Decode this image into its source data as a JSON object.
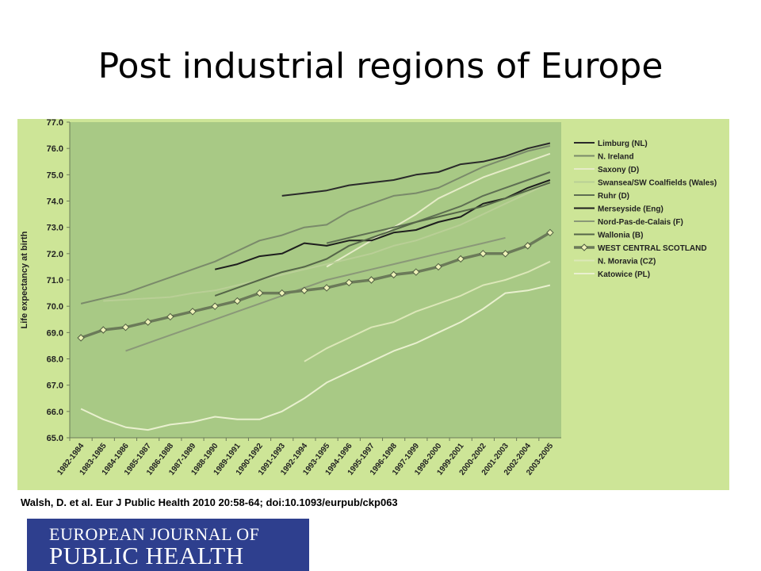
{
  "slide": {
    "title": "Post industrial regions of Europe",
    "citation": "Walsh, D. et al. Eur J Public Health 2010 20:58-64; doi:10.1093/eurpub/ckp063"
  },
  "logo": {
    "line1": "EUROPEAN JOURNAL OF",
    "line2": "PUBLIC HEALTH"
  },
  "colors": {
    "panel_background": "#cde597",
    "plot_background": "#a8c985",
    "logo_background": "#2e3f8e"
  },
  "chart_data": {
    "type": "line",
    "ylabel": "Life expectancy at birth",
    "xlabel": "",
    "ylim": [
      65.0,
      77.0
    ],
    "yticks": [
      "65.0",
      "66.0",
      "67.0",
      "68.0",
      "69.0",
      "70.0",
      "71.0",
      "72.0",
      "73.0",
      "74.0",
      "75.0",
      "76.0",
      "77.0"
    ],
    "categories": [
      "1982-1984",
      "1983-1985",
      "1984-1986",
      "1985-1987",
      "1986-1988",
      "1987-1989",
      "1988-1990",
      "1989-1991",
      "1990-1992",
      "1991-1993",
      "1992-1994",
      "1993-1995",
      "1994-1996",
      "1995-1997",
      "1996-1998",
      "1997-1999",
      "1998-2000",
      "1999-2001",
      "2000-2002",
      "2001-2003",
      "2002-2004",
      "2003-2005"
    ],
    "legend_position": "right",
    "series": [
      {
        "name": "Limburg (NL)",
        "color": "#2a2a2a",
        "width": 2,
        "values": [
          null,
          null,
          null,
          null,
          null,
          null,
          null,
          null,
          null,
          74.2,
          74.3,
          74.4,
          74.6,
          74.7,
          74.8,
          75.0,
          75.1,
          75.4,
          75.5,
          75.7,
          76.0,
          76.2
        ]
      },
      {
        "name": "N. Ireland",
        "color": "#7a8a6a",
        "width": 2,
        "values": [
          70.1,
          70.3,
          70.5,
          70.8,
          71.1,
          71.4,
          71.7,
          72.1,
          72.5,
          72.7,
          73.0,
          73.1,
          73.6,
          73.9,
          74.2,
          74.3,
          74.5,
          74.9,
          75.3,
          75.6,
          75.9,
          76.1
        ]
      },
      {
        "name": "Saxony (D)",
        "color": "#e6ecc8",
        "width": 2,
        "values": [
          null,
          null,
          null,
          null,
          null,
          null,
          null,
          null,
          null,
          null,
          null,
          71.5,
          72.0,
          72.5,
          73.0,
          73.5,
          74.1,
          74.5,
          74.9,
          75.2,
          75.5,
          75.8
        ]
      },
      {
        "name": "Swansea/SW Coalfields (Wales)",
        "color": "#b9cf96",
        "width": 2,
        "values": [
          null,
          70.2,
          70.25,
          70.3,
          70.35,
          70.5,
          70.6,
          70.8,
          71.0,
          71.2,
          71.4,
          71.6,
          71.8,
          72.0,
          72.3,
          72.5,
          72.8,
          73.1,
          73.5,
          73.9,
          74.3,
          74.7
        ]
      },
      {
        "name": "Ruhr (D)",
        "color": "#5e6e52",
        "width": 2,
        "values": [
          null,
          null,
          null,
          null,
          null,
          null,
          null,
          null,
          null,
          null,
          null,
          72.4,
          72.6,
          72.8,
          73.0,
          73.2,
          73.5,
          73.8,
          74.2,
          74.5,
          74.8,
          75.1
        ]
      },
      {
        "name": "Merseyside (Eng)",
        "color": "#1e1e1e",
        "width": 2,
        "values": [
          null,
          null,
          null,
          null,
          null,
          null,
          71.4,
          71.6,
          71.9,
          72.0,
          72.4,
          72.3,
          72.5,
          72.5,
          72.8,
          72.9,
          73.2,
          73.4,
          73.9,
          74.1,
          74.5,
          74.8
        ]
      },
      {
        "name": "Nord-Pas-de-Calais (F)",
        "color": "#8a9878",
        "width": 2,
        "values": [
          null,
          null,
          68.3,
          68.6,
          68.9,
          69.2,
          69.5,
          69.8,
          70.1,
          70.4,
          70.7,
          71.0,
          71.2,
          71.4,
          71.6,
          71.8,
          72.0,
          72.2,
          72.4,
          72.6,
          null,
          null
        ]
      },
      {
        "name": "Wallonia (B)",
        "color": "#556548",
        "width": 2,
        "values": [
          null,
          null,
          null,
          null,
          null,
          null,
          70.4,
          70.7,
          71.0,
          71.3,
          71.5,
          71.8,
          72.3,
          72.6,
          72.9,
          73.2,
          73.4,
          73.6,
          73.8,
          74.1,
          74.4,
          74.7
        ]
      },
      {
        "name": "WEST CENTRAL SCOTLAND",
        "color": "#6b7a59",
        "width": 3.5,
        "marker": "diamond",
        "values": [
          68.8,
          69.1,
          69.2,
          69.4,
          69.6,
          69.8,
          70.0,
          70.2,
          70.5,
          70.5,
          70.6,
          70.7,
          70.9,
          71.0,
          71.2,
          71.3,
          71.5,
          71.8,
          72.0,
          72.0,
          72.3,
          72.8
        ]
      },
      {
        "name": "N. Moravia (CZ)",
        "color": "#dce7b8",
        "width": 2,
        "values": [
          null,
          null,
          null,
          null,
          null,
          null,
          null,
          null,
          null,
          null,
          67.9,
          68.4,
          68.8,
          69.2,
          69.4,
          69.8,
          70.1,
          70.4,
          70.8,
          71.0,
          71.3,
          71.7
        ]
      },
      {
        "name": "Katowice (PL)",
        "color": "#e9f0cf",
        "width": 2,
        "values": [
          66.1,
          65.7,
          65.4,
          65.3,
          65.5,
          65.6,
          65.8,
          65.7,
          65.7,
          66.0,
          66.5,
          67.1,
          67.5,
          67.9,
          68.3,
          68.6,
          69.0,
          69.4,
          69.9,
          70.5,
          70.6,
          70.8
        ]
      }
    ]
  }
}
